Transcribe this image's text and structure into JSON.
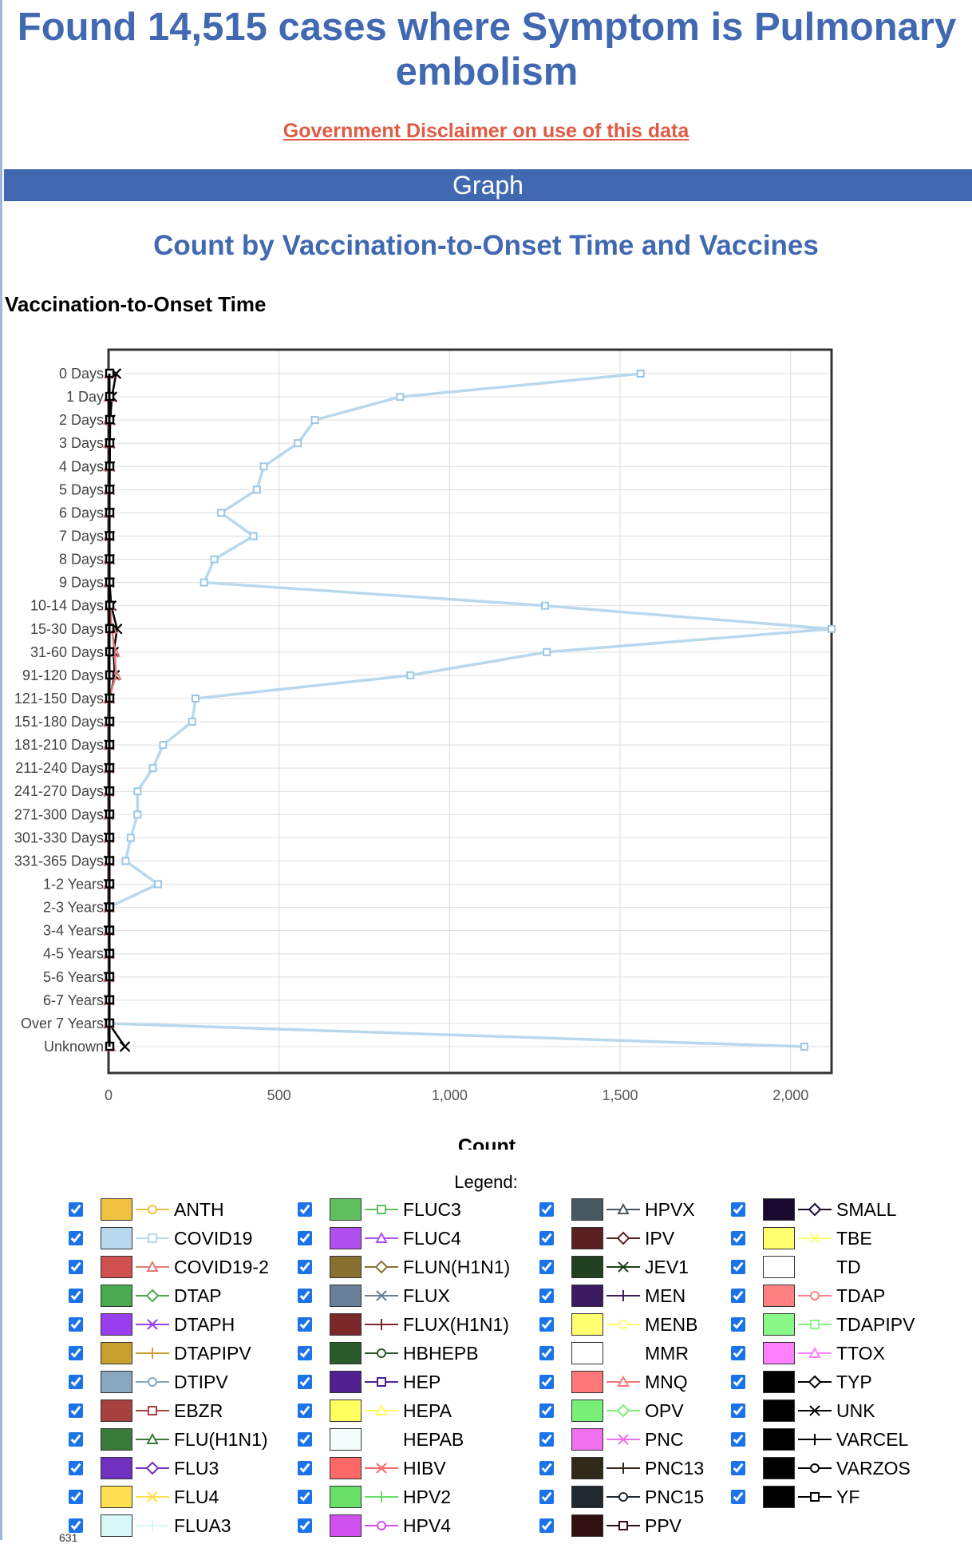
{
  "header": {
    "title": "Found 14,515 cases where Symptom is Pulmonary embolism",
    "disclaimer_link": "Government Disclaimer on use of this data"
  },
  "section": {
    "graph_label": "Graph"
  },
  "chart": {
    "title": "Count by Vaccination-to-Onset Time and Vaccines",
    "y_axis_title": "Vaccination-to-Onset Time",
    "x_axis_title": "Count"
  },
  "chart_data": {
    "type": "line",
    "orientation": "horizontal",
    "title": "Count by Vaccination-to-Onset Time and Vaccines",
    "xlabel": "Count",
    "ylabel": "Vaccination-to-Onset Time",
    "xlim": [
      0,
      2120
    ],
    "x_ticks": [
      "0",
      "500",
      "1,000",
      "1,500",
      "2,000"
    ],
    "grid": true,
    "categories": [
      "0 Days",
      "1 Day",
      "2 Days",
      "3 Days",
      "4 Days",
      "5 Days",
      "6 Days",
      "7 Days",
      "8 Days",
      "9 Days",
      "10-14 Days",
      "15-30 Days",
      "31-60 Days",
      "91-120 Days",
      "121-150 Days",
      "151-180 Days",
      "181-210 Days",
      "211-240 Days",
      "241-270 Days",
      "271-300 Days",
      "301-330 Days",
      "331-365 Days",
      "1-2 Years",
      "2-3 Years",
      "3-4 Years",
      "4-5 Years",
      "5-6 Years",
      "6-7 Years",
      "Over 7 Years",
      "Unknown"
    ],
    "series": [
      {
        "name": "COVID19",
        "color": "#b8d8ee",
        "values": [
          1560,
          855,
          605,
          555,
          455,
          435,
          330,
          425,
          310,
          280,
          1280,
          2120,
          1285,
          885,
          255,
          245,
          160,
          130,
          85,
          85,
          65,
          50,
          145,
          0,
          0,
          0,
          0,
          0,
          0,
          2040
        ]
      },
      {
        "name": "UNK",
        "color": "#000000",
        "values": [
          22,
          10,
          5,
          4,
          4,
          3,
          3,
          3,
          3,
          3,
          8,
          25,
          15,
          18,
          3,
          2,
          2,
          2,
          1,
          1,
          1,
          1,
          1,
          1,
          1,
          1,
          1,
          1,
          1,
          48
        ]
      },
      {
        "name": "COVID19-2",
        "color": "#e07a7a",
        "values": [
          3,
          2,
          1,
          1,
          1,
          1,
          1,
          1,
          1,
          1,
          4,
          10,
          18,
          22,
          1,
          1,
          1,
          1,
          1,
          1,
          1,
          1,
          1,
          1,
          1,
          1,
          1,
          1,
          1,
          5
        ]
      }
    ]
  },
  "legend": {
    "title": "Legend:",
    "items": [
      {
        "label": "ANTH",
        "color": "#f0c040",
        "marker": "circle",
        "line": "#f0c040"
      },
      {
        "label": "COVID19",
        "color": "#b8d8ee",
        "marker": "square",
        "line": "#b8d8ee"
      },
      {
        "label": "COVID19-2",
        "color": "#d05050",
        "marker": "triangle",
        "line": "#e07a7a"
      },
      {
        "label": "DTAP",
        "color": "#4aaa50",
        "marker": "diamond",
        "line": "#4aaa50"
      },
      {
        "label": "DTAPH",
        "color": "#9a3ff0",
        "marker": "x",
        "line": "#9a3ff0"
      },
      {
        "label": "DTAPIPV",
        "color": "#c9a030",
        "marker": "plus",
        "line": "#c9a030"
      },
      {
        "label": "DTIPV",
        "color": "#88a8c0",
        "marker": "circle",
        "line": "#88a8c0"
      },
      {
        "label": "EBZR",
        "color": "#a84040",
        "marker": "square",
        "line": "#a84040"
      },
      {
        "label": "FLU(H1N1)",
        "color": "#3a7a3a",
        "marker": "triangle",
        "line": "#3a7a3a"
      },
      {
        "label": "FLU3",
        "color": "#7030c0",
        "marker": "diamond",
        "line": "#7030c0"
      },
      {
        "label": "FLU4",
        "color": "#ffe050",
        "marker": "x",
        "line": "#ffe050"
      },
      {
        "label": "FLUA3",
        "color": "#d8f8f8",
        "marker": "plus",
        "line": "#d8f8f8"
      },
      {
        "label": "FLUC3",
        "color": "#60c060",
        "marker": "square",
        "line": "#60c060"
      },
      {
        "label": "FLUC4",
        "color": "#b050f0",
        "marker": "triangle",
        "line": "#b050f0"
      },
      {
        "label": "FLUN(H1N1)",
        "color": "#8a7030",
        "marker": "diamond",
        "line": "#8a7030"
      },
      {
        "label": "FLUX",
        "color": "#6a8098",
        "marker": "x",
        "line": "#6a8098"
      },
      {
        "label": "FLUX(H1N1)",
        "color": "#7a2828",
        "marker": "plus",
        "line": "#7a2828"
      },
      {
        "label": "HBHEPB",
        "color": "#2a5a2a",
        "marker": "circle",
        "line": "#2a5a2a"
      },
      {
        "label": "HEP",
        "color": "#502090",
        "marker": "square",
        "line": "#502090"
      },
      {
        "label": "HEPA",
        "color": "#ffff60",
        "marker": "triangle",
        "line": "#ffff60"
      },
      {
        "label": "HEPAB",
        "color": "#f4fcfc",
        "marker": "none",
        "line": "#f4fcfc"
      },
      {
        "label": "HIBV",
        "color": "#ff6868",
        "marker": "x",
        "line": "#ff6868"
      },
      {
        "label": "HPV2",
        "color": "#68e068",
        "marker": "plus",
        "line": "#68e068"
      },
      {
        "label": "HPV4",
        "color": "#d050f0",
        "marker": "circle",
        "line": "#d050f0"
      },
      {
        "label": "HPVX",
        "color": "#485860",
        "marker": "triangle",
        "line": "#485860"
      },
      {
        "label": "IPV",
        "color": "#5a2020",
        "marker": "diamond",
        "line": "#5a2020"
      },
      {
        "label": "JEV1",
        "color": "#204020",
        "marker": "x",
        "line": "#204020"
      },
      {
        "label": "MEN",
        "color": "#3a1a60",
        "marker": "plus",
        "line": "#3a1a60"
      },
      {
        "label": "MENB",
        "color": "#ffff70",
        "marker": "circle",
        "line": "#ffff70"
      },
      {
        "label": "MMR",
        "color": "#ffffff",
        "marker": "none",
        "line": "#ffffff"
      },
      {
        "label": "MNQ",
        "color": "#ff7878",
        "marker": "triangle",
        "line": "#ff7878"
      },
      {
        "label": "OPV",
        "color": "#78f078",
        "marker": "diamond",
        "line": "#78f078"
      },
      {
        "label": "PNC",
        "color": "#f070f0",
        "marker": "x",
        "line": "#f070f0"
      },
      {
        "label": "PNC13",
        "color": "#302818",
        "marker": "plus",
        "line": "#302818"
      },
      {
        "label": "PNC15",
        "color": "#202830",
        "marker": "circle",
        "line": "#202830"
      },
      {
        "label": "PPV",
        "color": "#301010",
        "marker": "square",
        "line": "#301010"
      },
      {
        "label": "SMALL",
        "color": "#1a0a30",
        "marker": "diamond",
        "line": "#1a0a30"
      },
      {
        "label": "TBE",
        "color": "#ffff70",
        "marker": "x",
        "line": "#ffff70"
      },
      {
        "label": "TD",
        "color": "#ffffff",
        "marker": "none",
        "line": "#ffffff"
      },
      {
        "label": "TDAP",
        "color": "#ff8080",
        "marker": "circle",
        "line": "#ff8080"
      },
      {
        "label": "TDAPIPV",
        "color": "#88f888",
        "marker": "square",
        "line": "#88f888"
      },
      {
        "label": "TTOX",
        "color": "#ff80ff",
        "marker": "triangle",
        "line": "#ff80ff"
      },
      {
        "label": "TYP",
        "color": "#000000",
        "marker": "diamond",
        "line": "#000000"
      },
      {
        "label": "UNK",
        "color": "#000000",
        "marker": "x",
        "line": "#000000"
      },
      {
        "label": "VARCEL",
        "color": "#000000",
        "marker": "plus",
        "line": "#000000"
      },
      {
        "label": "VARZOS",
        "color": "#000000",
        "marker": "circle",
        "line": "#000000"
      },
      {
        "label": "YF",
        "color": "#000000",
        "marker": "square",
        "line": "#000000"
      }
    ]
  },
  "footer": {
    "fragment": "631"
  }
}
